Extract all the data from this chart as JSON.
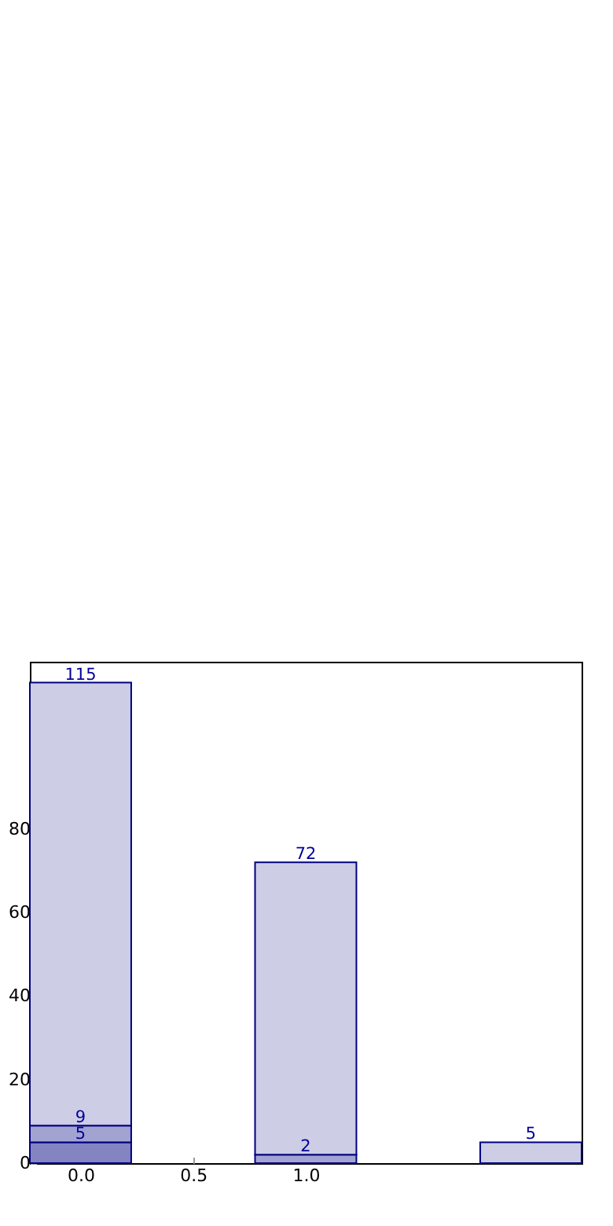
{
  "chart_data": {
    "type": "bar",
    "x": [
      0,
      1,
      2
    ],
    "stacked": true,
    "series": [
      {
        "color": "#8484c2",
        "values": [
          5,
          null,
          null
        ]
      },
      {
        "color": "#a3a3d2",
        "values": [
          4,
          2,
          null
        ]
      },
      {
        "color": "#cdcde5",
        "values": [
          106,
          70,
          5
        ]
      }
    ],
    "annotations": [
      {
        "text": "5",
        "x": 0,
        "y": 5
      },
      {
        "text": "9",
        "x": 0,
        "y": 9
      },
      {
        "text": "115",
        "x": 0,
        "y": 115
      },
      {
        "text": "2",
        "x": 1,
        "y": 2
      },
      {
        "text": "72",
        "x": 1,
        "y": 72
      },
      {
        "text": "5",
        "x": 2,
        "y": 5
      }
    ],
    "xlim": [
      -0.225,
      2.225
    ],
    "xticks": [
      {
        "value": 0,
        "label": "0.0"
      },
      0.5,
      {
        "value": 1,
        "label": "1.0"
      }
    ],
    "ylim": [
      0,
      120
    ],
    "yticks": [
      0,
      20,
      40,
      60,
      80
    ],
    "grid": false,
    "legend": false
  }
}
